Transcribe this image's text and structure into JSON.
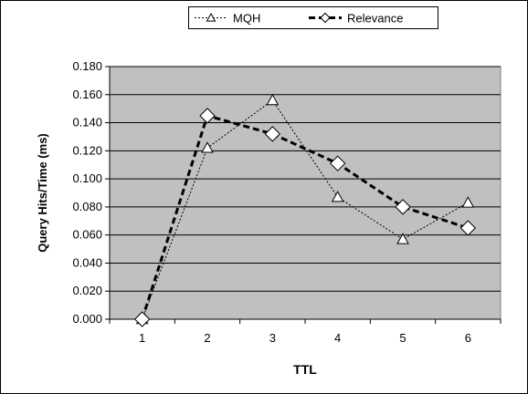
{
  "chart_data": {
    "type": "line",
    "title": "",
    "xlabel": "TTL",
    "ylabel": "Query Hits/Time (ms)",
    "categories": [
      "1",
      "2",
      "3",
      "4",
      "5",
      "6"
    ],
    "y_tick_labels": [
      "0.000",
      "0.020",
      "0.040",
      "0.060",
      "0.080",
      "0.100",
      "0.120",
      "0.140",
      "0.160",
      "0.180"
    ],
    "ylim": [
      0,
      0.18
    ],
    "grid": true,
    "legend_position": "top",
    "plot_background": "#c0c0c0",
    "series": [
      {
        "name": "MQH",
        "marker": "triangle",
        "line_style": "dotted",
        "color": "#000000",
        "values": [
          0.0,
          0.122,
          0.156,
          0.087,
          0.057,
          0.083
        ]
      },
      {
        "name": "Relevance",
        "marker": "diamond",
        "line_style": "dashed",
        "color": "#000000",
        "values": [
          0.0,
          0.145,
          0.132,
          0.111,
          0.08,
          0.065
        ]
      }
    ]
  }
}
